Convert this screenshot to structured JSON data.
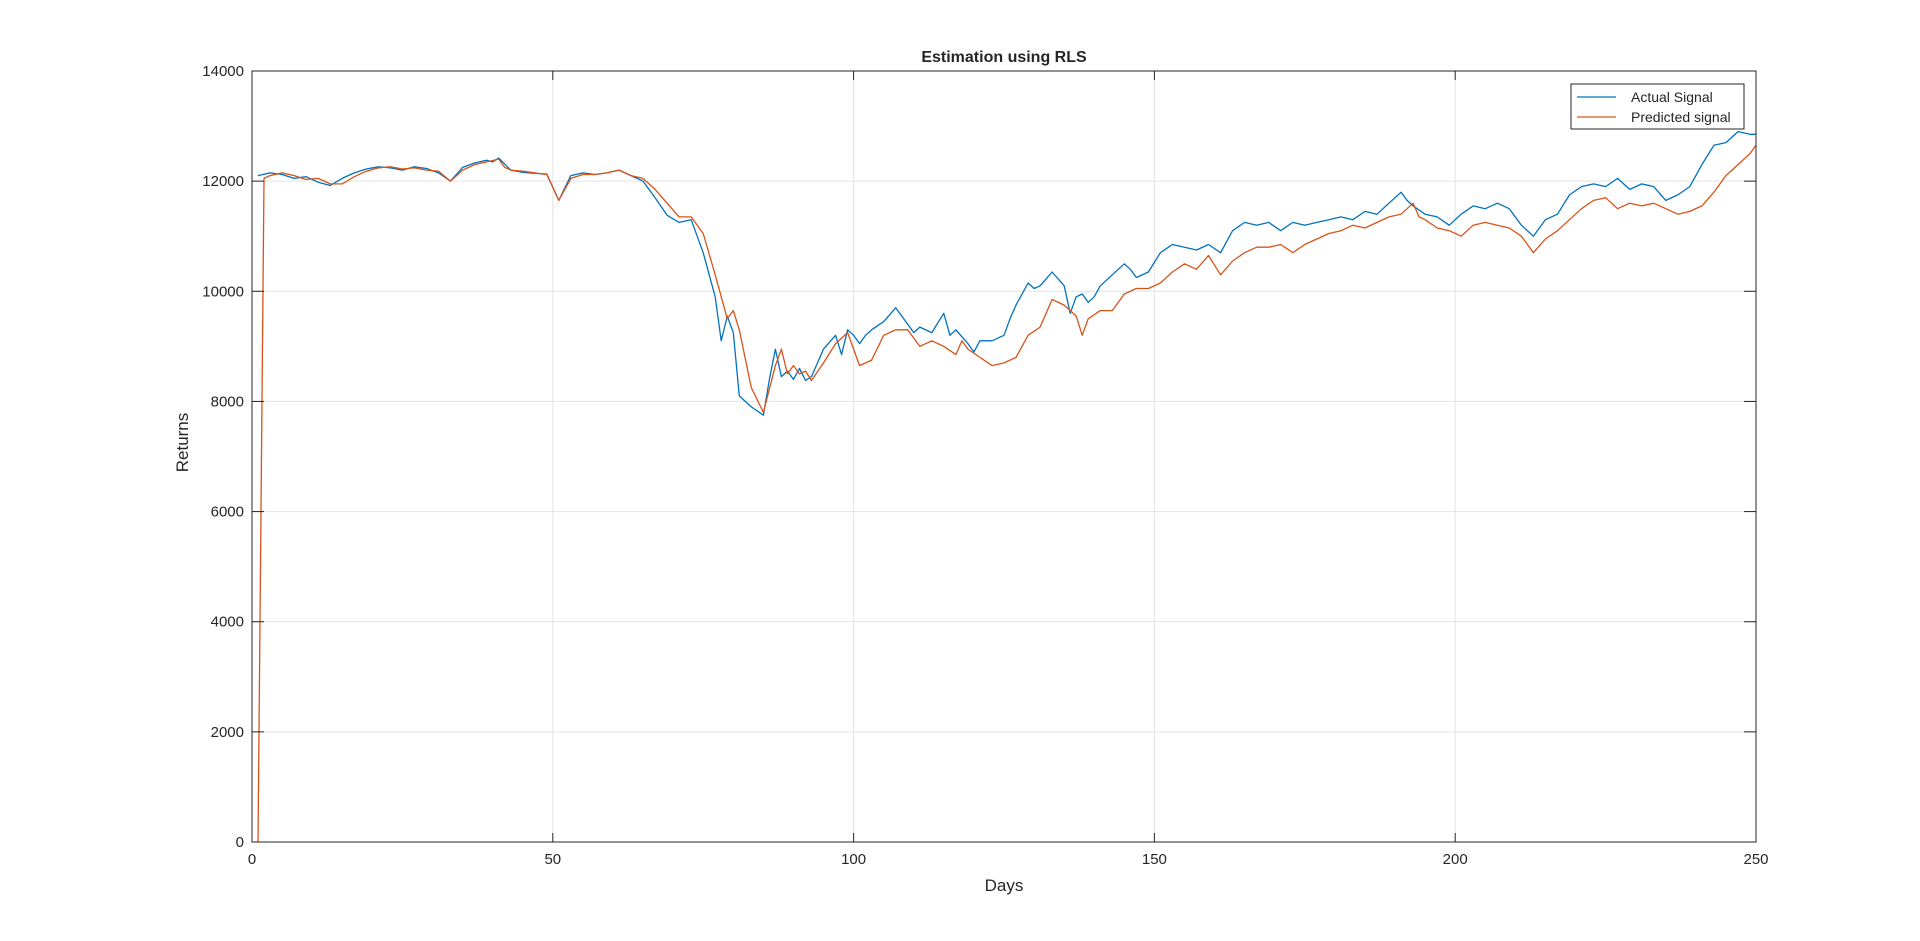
{
  "chart_data": {
    "type": "line",
    "title": "Estimation using RLS",
    "xlabel": "Days",
    "ylabel": "Returns",
    "xlim": [
      0,
      250
    ],
    "ylim": [
      0,
      14000
    ],
    "xticks": [
      0,
      50,
      100,
      150,
      200,
      250
    ],
    "yticks": [
      0,
      2000,
      4000,
      6000,
      8000,
      10000,
      12000,
      14000
    ],
    "grid": true,
    "legend_position": "top-right",
    "series": [
      {
        "name": "Actual Signal",
        "color": "#0072BD",
        "x": [
          1,
          3,
          5,
          7,
          9,
          11,
          13,
          15,
          17,
          19,
          21,
          23,
          25,
          27,
          29,
          31,
          33,
          35,
          37,
          39,
          40,
          41,
          43,
          45,
          47,
          49,
          51,
          53,
          55,
          57,
          59,
          61,
          63,
          65,
          67,
          69,
          71,
          73,
          75,
          77,
          78,
          79,
          80,
          81,
          83,
          85,
          86,
          87,
          88,
          89,
          90,
          91,
          92,
          93,
          95,
          97,
          98,
          99,
          100,
          101,
          102,
          103,
          105,
          107,
          109,
          110,
          111,
          113,
          115,
          116,
          117,
          119,
          120,
          121,
          123,
          125,
          126,
          127,
          129,
          130,
          131,
          133,
          135,
          136,
          137,
          138,
          139,
          140,
          141,
          143,
          145,
          146,
          147,
          149,
          151,
          153,
          155,
          157,
          159,
          161,
          163,
          165,
          167,
          169,
          171,
          173,
          175,
          177,
          179,
          181,
          183,
          185,
          187,
          189,
          191,
          192,
          193,
          195,
          197,
          199,
          201,
          203,
          205,
          207,
          209,
          211,
          213,
          215,
          217,
          219,
          221,
          223,
          225,
          227,
          229,
          231,
          233,
          235,
          237,
          239,
          241,
          243,
          245,
          247,
          249,
          250
        ],
        "y": [
          12100,
          12150,
          12120,
          12050,
          12080,
          11980,
          11920,
          12050,
          12150,
          12220,
          12260,
          12240,
          12200,
          12260,
          12230,
          12150,
          12000,
          12250,
          12330,
          12380,
          12350,
          12420,
          12200,
          12160,
          12140,
          12130,
          11650,
          12100,
          12150,
          12120,
          12150,
          12200,
          12100,
          12000,
          11700,
          11380,
          11250,
          11300,
          10700,
          9900,
          9100,
          9550,
          9250,
          8100,
          7900,
          7750,
          8400,
          8950,
          8450,
          8550,
          8400,
          8600,
          8380,
          8450,
          8950,
          9200,
          8850,
          9300,
          9200,
          9050,
          9200,
          9300,
          9450,
          9700,
          9400,
          9250,
          9350,
          9250,
          9600,
          9200,
          9300,
          9050,
          8900,
          9100,
          9100,
          9200,
          9500,
          9750,
          10150,
          10050,
          10100,
          10350,
          10100,
          9600,
          9900,
          9950,
          9800,
          9900,
          10100,
          10300,
          10500,
          10400,
          10250,
          10350,
          10700,
          10850,
          10800,
          10750,
          10850,
          10700,
          11100,
          11250,
          11200,
          11250,
          11100,
          11250,
          11200,
          11250,
          11300,
          11350,
          11300,
          11450,
          11400,
          11600,
          11800,
          11650,
          11550,
          11400,
          11350,
          11200,
          11400,
          11550,
          11500,
          11600,
          11500,
          11200,
          11000,
          11300,
          11400,
          11750,
          11900,
          11950,
          11900,
          12050,
          11850,
          11950,
          11900,
          11650,
          11750,
          11900,
          12300,
          12650,
          12700,
          12900,
          12850,
          12850
        ]
      },
      {
        "name": "Predicted signal",
        "color": "#D95319",
        "x": [
          1,
          2,
          3,
          5,
          7,
          9,
          11,
          13,
          15,
          17,
          19,
          21,
          23,
          25,
          27,
          29,
          31,
          33,
          35,
          37,
          39,
          41,
          42,
          43,
          45,
          47,
          49,
          51,
          52,
          53,
          55,
          57,
          59,
          61,
          63,
          65,
          67,
          69,
          71,
          73,
          75,
          77,
          79,
          80,
          81,
          83,
          85,
          87,
          88,
          89,
          90,
          91,
          92,
          93,
          95,
          97,
          99,
          101,
          103,
          105,
          107,
          109,
          111,
          113,
          115,
          117,
          118,
          119,
          121,
          123,
          125,
          127,
          128,
          129,
          131,
          133,
          135,
          137,
          138,
          139,
          141,
          143,
          145,
          147,
          149,
          151,
          153,
          155,
          157,
          159,
          161,
          163,
          165,
          167,
          169,
          171,
          173,
          175,
          177,
          179,
          181,
          183,
          185,
          187,
          189,
          191,
          193,
          194,
          195,
          197,
          199,
          201,
          203,
          205,
          207,
          209,
          211,
          213,
          215,
          217,
          219,
          221,
          223,
          225,
          227,
          229,
          231,
          233,
          235,
          237,
          239,
          241,
          243,
          245,
          247,
          249,
          250
        ],
        "y": [
          0,
          12050,
          12100,
          12150,
          12100,
          12030,
          12050,
          11950,
          11950,
          12080,
          12180,
          12240,
          12260,
          12220,
          12240,
          12200,
          12180,
          12000,
          12200,
          12300,
          12350,
          12400,
          12250,
          12200,
          12180,
          12150,
          12120,
          11650,
          11850,
          12050,
          12120,
          12120,
          12150,
          12200,
          12100,
          12050,
          11850,
          11600,
          11350,
          11350,
          11050,
          10300,
          9500,
          9650,
          9300,
          8250,
          7800,
          8650,
          8950,
          8500,
          8650,
          8500,
          8550,
          8380,
          8700,
          9050,
          9250,
          8650,
          8750,
          9200,
          9300,
          9300,
          9000,
          9100,
          9000,
          8850,
          9100,
          8950,
          8800,
          8650,
          8700,
          8800,
          9000,
          9200,
          9350,
          9850,
          9750,
          9550,
          9200,
          9500,
          9650,
          9650,
          9950,
          10050,
          10050,
          10150,
          10350,
          10500,
          10400,
          10650,
          10300,
          10550,
          10700,
          10800,
          10800,
          10850,
          10700,
          10850,
          10950,
          11050,
          11100,
          11200,
          11150,
          11250,
          11350,
          11400,
          11600,
          11350,
          11300,
          11150,
          11100,
          11000,
          11200,
          11250,
          11200,
          11150,
          11000,
          10700,
          10950,
          11100,
          11300,
          11500,
          11650,
          11700,
          11500,
          11600,
          11550,
          11600,
          11500,
          11400,
          11450,
          11550,
          11800,
          12100,
          12300,
          12500,
          12650
        ]
      }
    ]
  }
}
